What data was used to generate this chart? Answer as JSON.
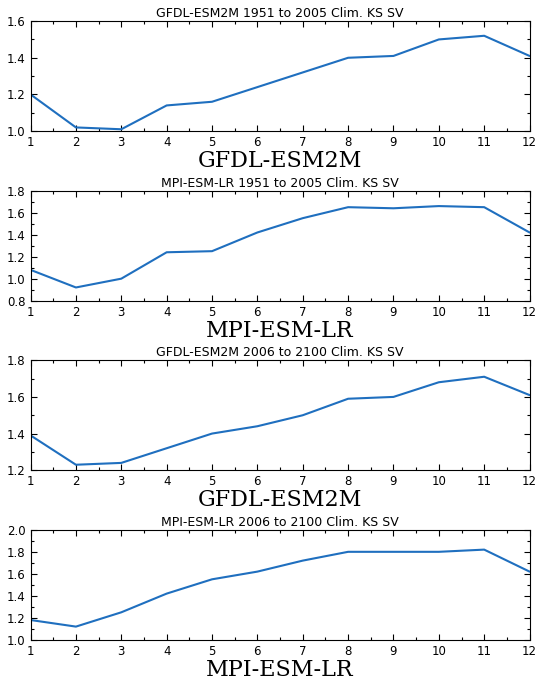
{
  "subplots": [
    {
      "title": "GFDL-ESM2M 1951 to 2005 Clim. KS SV",
      "xlabel": "GFDL-ESM2M",
      "x": [
        1,
        2,
        3,
        4,
        5,
        6,
        7,
        8,
        9,
        10,
        11,
        12
      ],
      "y": [
        1.2,
        1.02,
        1.01,
        1.14,
        1.16,
        1.24,
        1.32,
        1.4,
        1.41,
        1.5,
        1.52,
        1.41
      ],
      "ylim": [
        1.0,
        1.6
      ],
      "yticks": [
        1.0,
        1.2,
        1.4,
        1.6
      ]
    },
    {
      "title": "MPI-ESM-LR 1951 to 2005 Clim. KS SV",
      "xlabel": "MPI-ESM-LR",
      "x": [
        1,
        2,
        3,
        4,
        5,
        6,
        7,
        8,
        9,
        10,
        11,
        12
      ],
      "y": [
        1.08,
        0.92,
        1.0,
        1.24,
        1.25,
        1.42,
        1.55,
        1.65,
        1.64,
        1.66,
        1.65,
        1.42
      ],
      "ylim": [
        0.8,
        1.8
      ],
      "yticks": [
        0.8,
        1.0,
        1.2,
        1.4,
        1.6,
        1.8
      ]
    },
    {
      "title": "GFDL-ESM2M 2006 to 2100 Clim. KS SV",
      "xlabel": "GFDL-ESM2M",
      "x": [
        1,
        2,
        3,
        4,
        5,
        6,
        7,
        8,
        9,
        10,
        11,
        12
      ],
      "y": [
        1.39,
        1.23,
        1.24,
        1.32,
        1.4,
        1.44,
        1.5,
        1.59,
        1.6,
        1.68,
        1.71,
        1.61
      ],
      "ylim": [
        1.2,
        1.8
      ],
      "yticks": [
        1.2,
        1.4,
        1.6,
        1.8
      ]
    },
    {
      "title": "MPI-ESM-LR 2006 to 2100 Clim. KS SV",
      "xlabel": "MPI-ESM-LR",
      "x": [
        1,
        2,
        3,
        4,
        5,
        6,
        7,
        8,
        9,
        10,
        11,
        12
      ],
      "y": [
        1.18,
        1.12,
        1.25,
        1.42,
        1.55,
        1.62,
        1.72,
        1.8,
        1.8,
        1.8,
        1.82,
        1.62
      ],
      "ylim": [
        1.0,
        2.0
      ],
      "yticks": [
        1.0,
        1.2,
        1.4,
        1.6,
        1.8,
        2.0
      ]
    }
  ],
  "line_color": "#1f6fbf",
  "line_width": 1.5,
  "xticks": [
    1,
    2,
    3,
    4,
    5,
    6,
    7,
    8,
    9,
    10,
    11,
    12
  ],
  "xlim": [
    1,
    12
  ],
  "bg_color": "#ffffff",
  "title_fontsize": 9,
  "xlabel_fontsize": 16,
  "tick_fontsize": 8.5
}
